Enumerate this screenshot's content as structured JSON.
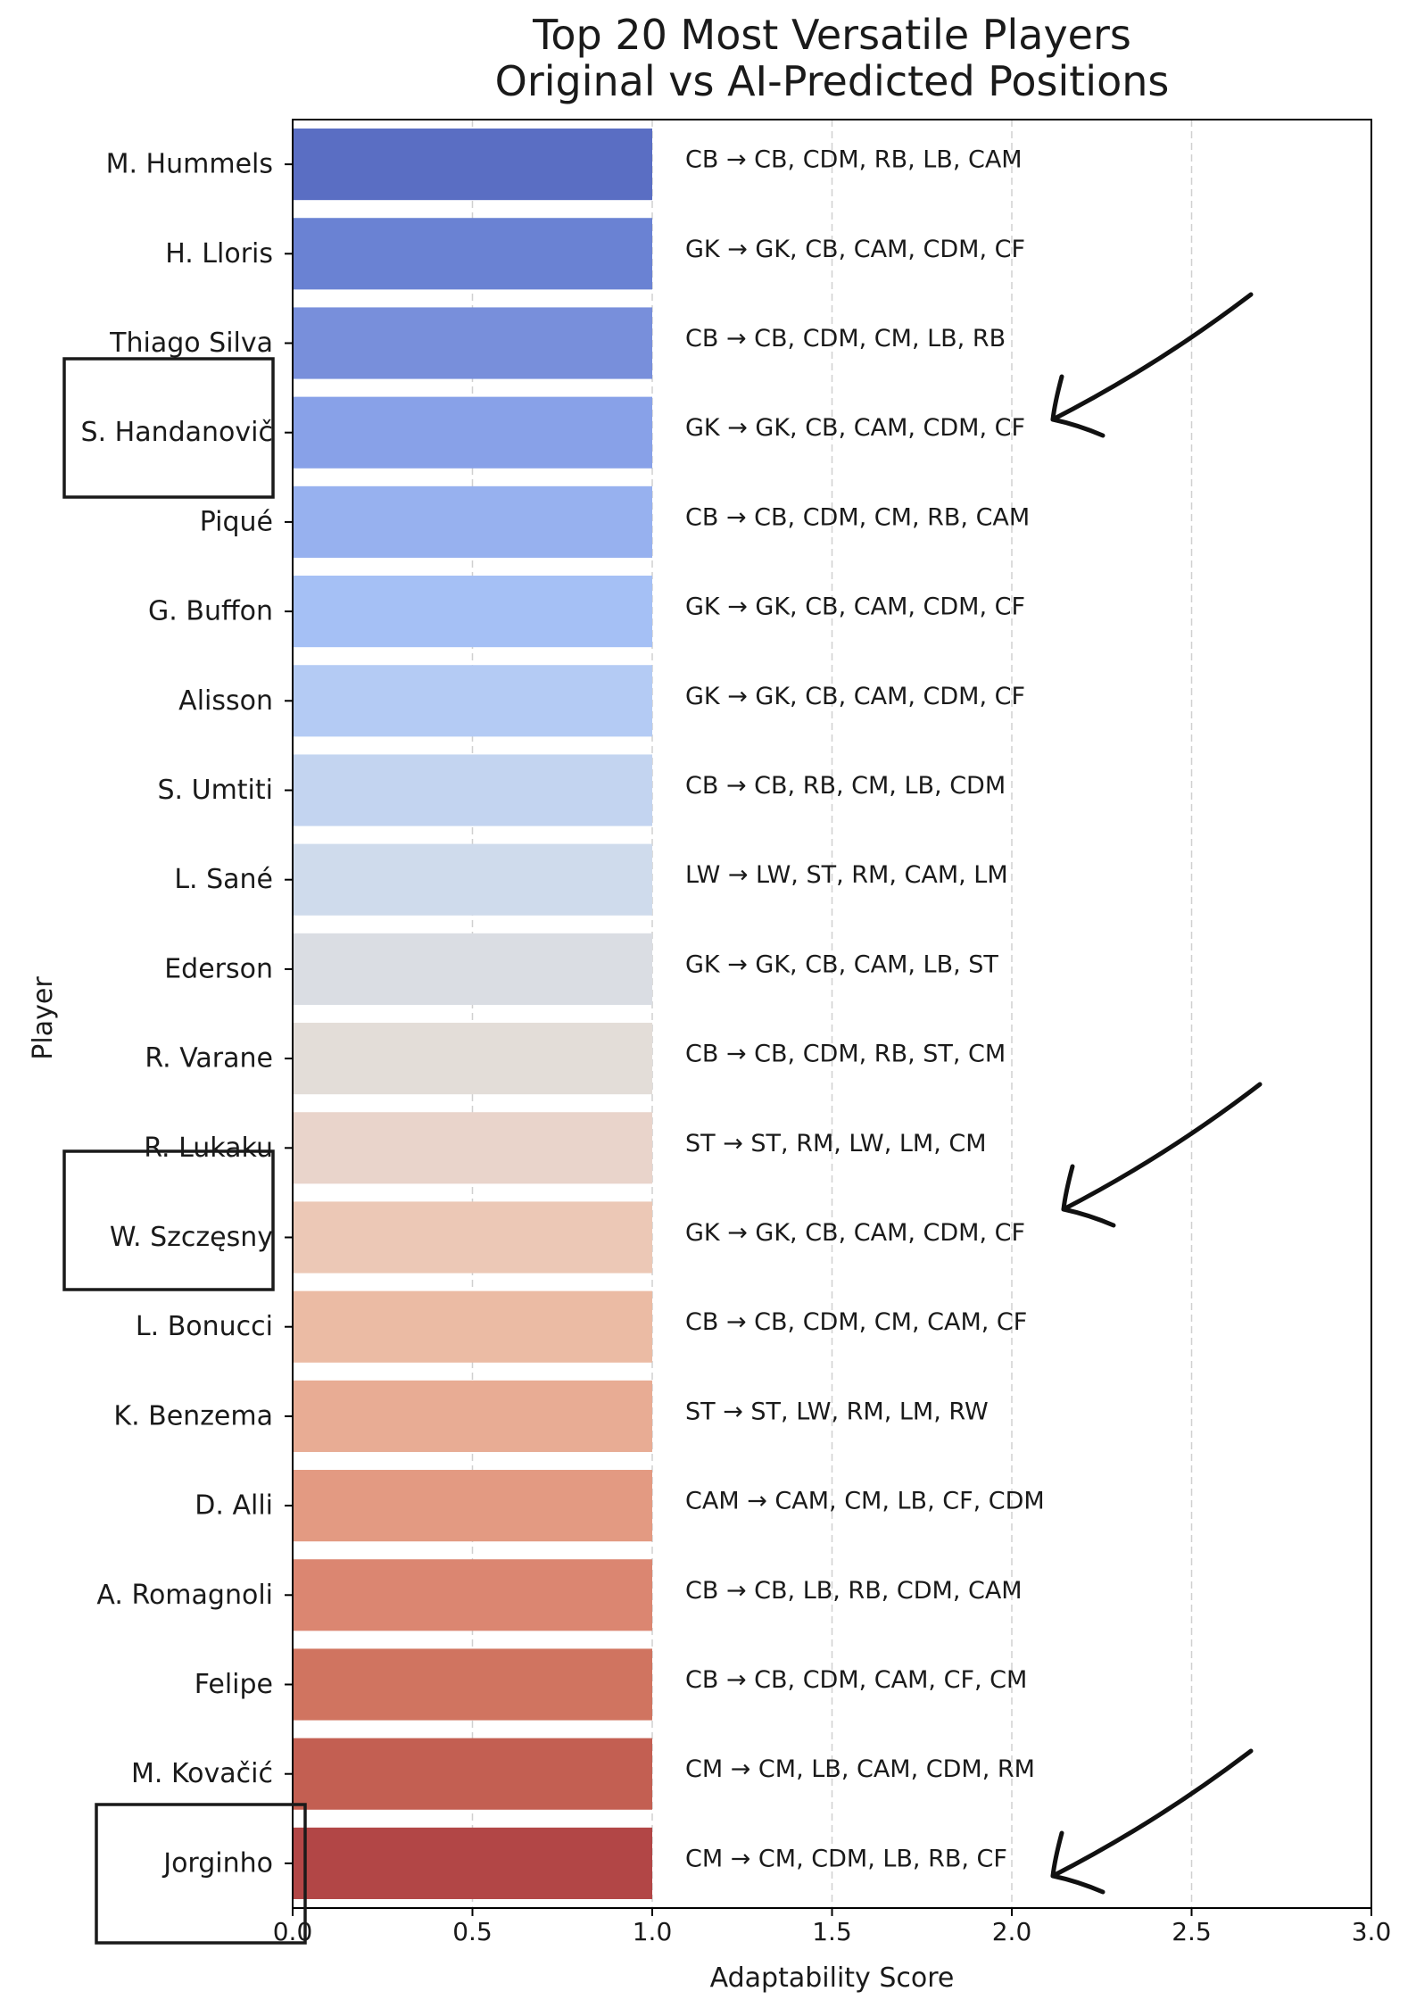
{
  "chart_data": {
    "type": "bar",
    "orientation": "horizontal",
    "title": "Top 20 Most Versatile Players\nOriginal vs AI-Predicted Positions",
    "title_lines": [
      "Top 20 Most Versatile Players",
      "Original vs AI-Predicted Positions"
    ],
    "xlabel": "Adaptability Score",
    "ylabel": "Player",
    "xlim": [
      0,
      3.0
    ],
    "xticks": [
      0.0,
      0.5,
      1.0,
      1.5,
      2.0,
      2.5,
      3.0
    ],
    "xtick_labels": [
      "0.0",
      "0.5",
      "1.0",
      "1.5",
      "2.0",
      "2.5",
      "3.0"
    ],
    "grid": "vertical dashed",
    "categories": [
      "M. Hummels",
      "H. Lloris",
      "Thiago Silva",
      "S. Handanovič",
      "Piqué",
      "G. Buffon",
      "Alisson",
      "S. Umtiti",
      "L. Sané",
      "Ederson",
      "R. Varane",
      "R. Lukaku",
      "W. Szczęsny",
      "L. Bonucci",
      "K. Benzema",
      "D. Alli",
      "A. Romagnoli",
      "Felipe",
      "M. Kovačić",
      "Jorginho"
    ],
    "values": [
      1,
      1,
      1,
      1,
      1,
      1,
      1,
      1,
      1,
      1,
      1,
      1,
      1,
      1,
      1,
      1,
      1,
      1,
      1,
      1
    ],
    "bar_labels": [
      "CB → CB, CDM, RB, LB, CAM",
      "GK → GK, CB, CAM, CDM, CF",
      "CB → CB, CDM, CM, LB, RB",
      "GK → GK, CB, CAM, CDM, CF",
      "CB → CB, CDM, CM, RB, CAM",
      "GK → GK, CB, CAM, CDM, CF",
      "GK → GK, CB, CAM, CDM, CF",
      "CB → CB, RB, CM, LB, CDM",
      "LW → LW, ST, RM, CAM, LM",
      "GK → GK, CB, CAM, LB, ST",
      "CB → CB, CDM, RB, ST, CM",
      "ST → ST, RM, LW, LM, CM",
      "GK → GK, CB, CAM, CDM, CF",
      "CB → CB, CDM, CM, CAM, CF",
      "ST → ST, LW, RM, LM, RW",
      "CAM → CAM, CM, LB, CF, CDM",
      "CB → CB, LB, RB, CDM, CAM",
      "CB → CB, CDM, CAM, CF, CM",
      "CM → CM, LB, CAM, CDM, RM",
      "CM → CM, CDM, LB, RB, CF"
    ],
    "colors": [
      "#5a6ec3",
      "#6a82d3",
      "#788fdb",
      "#88a1e8",
      "#97b1ef",
      "#a5c0f5",
      "#b4cbf4",
      "#c3d4f0",
      "#cfdbec",
      "#dadde3",
      "#e3ddd8",
      "#e9d4cb",
      "#ecc8b6",
      "#ebbba4",
      "#e8ac94",
      "#e39a82",
      "#db8671",
      "#d07460",
      "#c35f52",
      "#b24646"
    ],
    "colormap": "coolwarm"
  },
  "annotations": {
    "highlighted_players": [
      "S. Handanovič",
      "W. Szczęsny",
      "Jorginho"
    ],
    "arrow_targets": [
      "S. Handanovič",
      "W. Szczęsny",
      "Jorginho"
    ],
    "highlight_color": "#1a1a1a"
  }
}
